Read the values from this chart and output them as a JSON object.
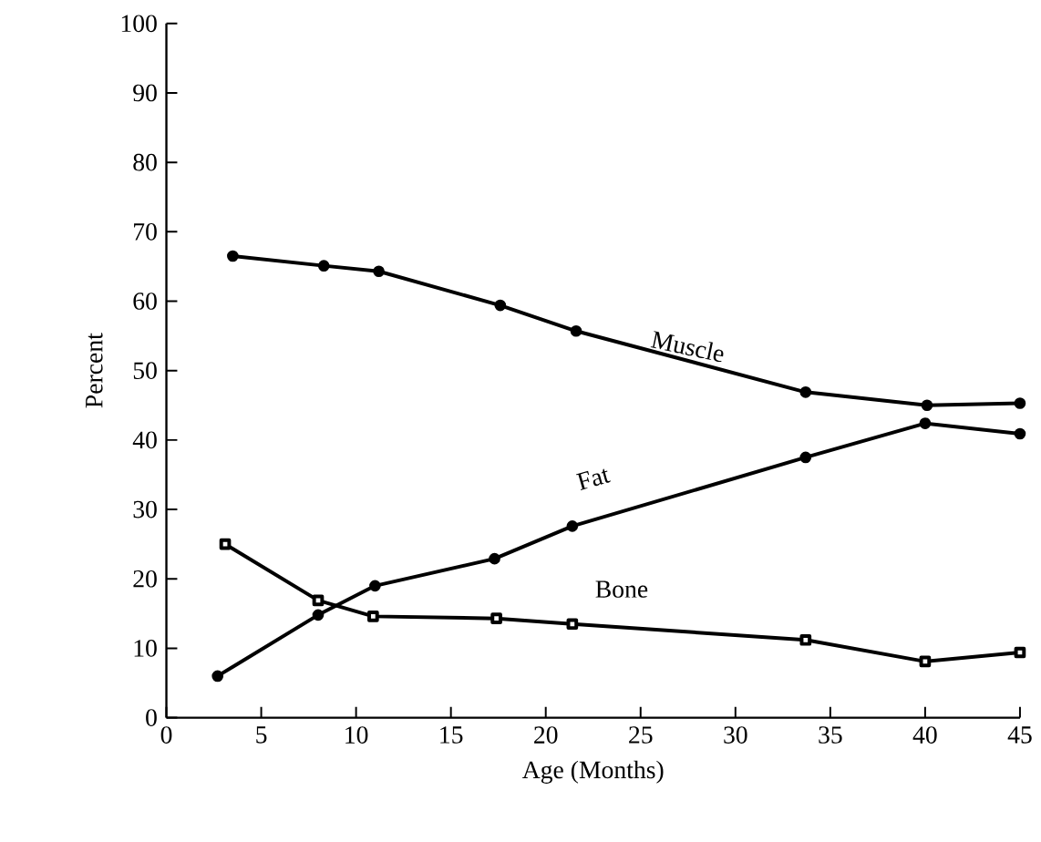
{
  "chart_data": {
    "type": "line",
    "xlabel": "Age (Months)",
    "ylabel": "Percent",
    "xlim": [
      0,
      45
    ],
    "ylim": [
      0,
      100
    ],
    "xticks": [
      0,
      5,
      10,
      15,
      20,
      25,
      30,
      35,
      40,
      45
    ],
    "yticks": [
      0,
      10,
      20,
      30,
      40,
      50,
      60,
      70,
      80,
      90,
      100
    ],
    "line_style": "solid",
    "series": [
      {
        "name": "Muscle",
        "color": "#000000",
        "marker": "circle",
        "x": [
          3.5,
          8.3,
          11.2,
          17.6,
          21.6,
          33.7,
          40.1,
          45
        ],
        "values": [
          66.5,
          65.1,
          64.3,
          59.4,
          55.7,
          46.9,
          45,
          45.3
        ]
      },
      {
        "name": "Fat",
        "color": "#000000",
        "marker": "circle",
        "x": [
          2.7,
          8,
          11,
          17.3,
          21.4,
          33.7,
          40,
          45
        ],
        "values": [
          6,
          14.8,
          19,
          22.9,
          27.6,
          37.5,
          42.4,
          40.9
        ]
      },
      {
        "name": "Bone",
        "color": "#000000",
        "marker": "square",
        "x": [
          3.1,
          8,
          10.9,
          17.4,
          21.4,
          33.7,
          40,
          45
        ],
        "values": [
          25,
          16.9,
          14.6,
          14.3,
          13.5,
          11.2,
          8.1,
          9.4
        ]
      }
    ]
  }
}
